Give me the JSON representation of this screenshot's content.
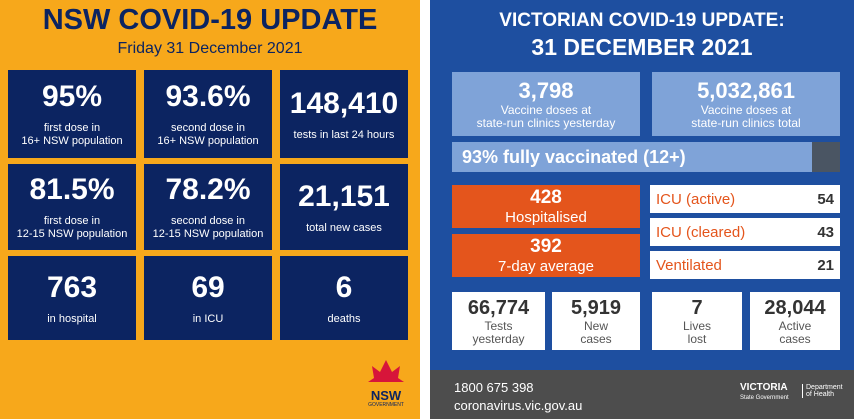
{
  "nsw": {
    "title": "NSW COVID-19 UPDATE",
    "date": "Friday 31 December 2021",
    "tiles": [
      {
        "value": "95%",
        "label": [
          "first dose in",
          "16+ NSW population"
        ]
      },
      {
        "value": "93.6%",
        "label": [
          "second dose in",
          "16+ NSW population"
        ]
      },
      {
        "value": "148,410",
        "label": [
          "tests in last 24 hours"
        ]
      },
      {
        "value": "81.5%",
        "label": [
          "first dose in",
          "12-15 NSW population"
        ]
      },
      {
        "value": "78.2%",
        "label": [
          "second dose in",
          "12-15 NSW population"
        ]
      },
      {
        "value": "21,151",
        "label": [
          "total new cases"
        ]
      },
      {
        "value": "763",
        "label": [
          "in hospital"
        ]
      },
      {
        "value": "69",
        "label": [
          "in ICU"
        ]
      },
      {
        "value": "6",
        "label": [
          "deaths"
        ]
      }
    ],
    "logo": {
      "name": "NSW",
      "sub": "GOVERNMENT"
    }
  },
  "vic": {
    "title": [
      "VICTORIAN COVID-19 UPDATE:",
      "31 DECEMBER 2021"
    ],
    "vaccine": [
      {
        "value": "3,798",
        "label": [
          "Vaccine doses at",
          "state-run clinics yesterday"
        ]
      },
      {
        "value": "5,032,861",
        "label": [
          "Vaccine doses at",
          "state-run clinics total"
        ]
      }
    ],
    "vaccinated": "93% fully vaccinated (12+)",
    "hospital": [
      {
        "value": "428",
        "label": "Hospitalised"
      },
      {
        "value": "392",
        "label": "7-day average"
      }
    ],
    "icu": [
      {
        "label": "ICU (active)",
        "value": "54"
      },
      {
        "label": "ICU (cleared)",
        "value": "43"
      },
      {
        "label": "Ventilated",
        "value": "21"
      }
    ],
    "stats": [
      {
        "value": "66,774",
        "label": [
          "Tests",
          "yesterday"
        ]
      },
      {
        "value": "5,919",
        "label": [
          "New",
          "cases"
        ]
      },
      {
        "value": "7",
        "label": [
          "Lives",
          "lost"
        ]
      },
      {
        "value": "28,044",
        "label": [
          "Active",
          "cases"
        ]
      }
    ],
    "footer": {
      "phone": "1800 675 398",
      "web": "coronavirus.vic.gov.au",
      "logo": {
        "name": "VICTORIA",
        "sub": "State Government"
      },
      "dept": [
        "Department",
        "of Health"
      ]
    }
  }
}
